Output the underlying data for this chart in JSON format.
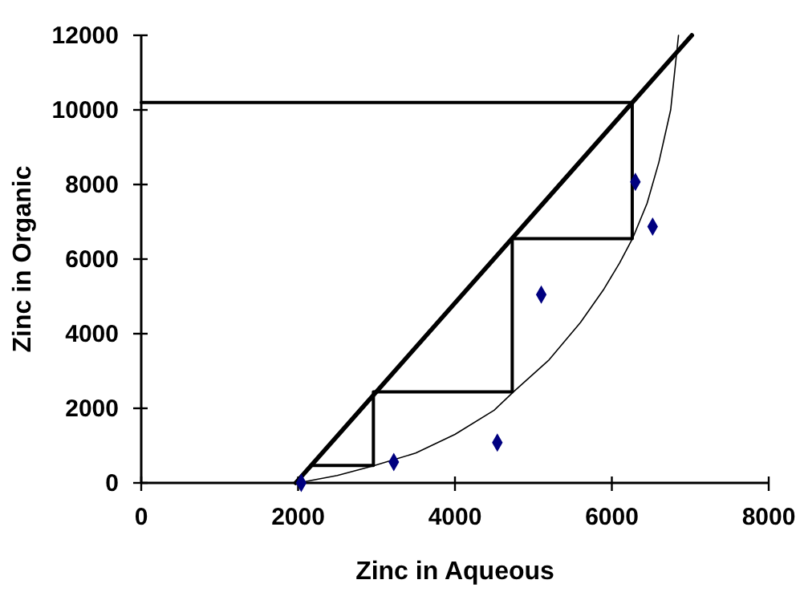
{
  "chart_data": {
    "type": "line",
    "xlabel": "Zinc in Aqueous",
    "ylabel": "Zinc in Organic",
    "xlim": [
      0,
      8000
    ],
    "xticks": [
      0,
      2000,
      4000,
      6000,
      8000
    ],
    "ylim": [
      0,
      12000
    ],
    "yticks": [
      0,
      2000,
      4000,
      6000,
      8000,
      10000,
      12000
    ],
    "grid": false,
    "marker": "none",
    "line_style": "solid",
    "series": [
      {
        "color": "#000000",
        "x": [
          1970,
          7020
        ],
        "values": [
          0,
          12000
        ]
      },
      {
        "color": "#000000",
        "x": [
          0,
          6260,
          6260,
          4730,
          4730,
          2960,
          2960,
          2160
        ],
        "values": [
          10200,
          10200,
          6550,
          6550,
          2440,
          2440,
          470,
          470
        ]
      },
      {
        "color": "#000000",
        "x": [
          2000,
          2500,
          2950,
          3500,
          4000,
          4500,
          4750,
          5200,
          5600,
          5900,
          6100,
          6270,
          6450,
          6600,
          6750,
          6850
        ],
        "values": [
          0,
          200,
          450,
          800,
          1300,
          1950,
          2450,
          3300,
          4300,
          5200,
          5900,
          6580,
          7500,
          8600,
          10000,
          12000
        ]
      },
      {
        "type": "scatter",
        "marker": "diamond",
        "color": "#000080",
        "x": [
          2040,
          3220,
          4540,
          5100,
          6300,
          6520
        ],
        "values": [
          0,
          560,
          1080,
          5050,
          8070,
          6870
        ]
      }
    ]
  }
}
